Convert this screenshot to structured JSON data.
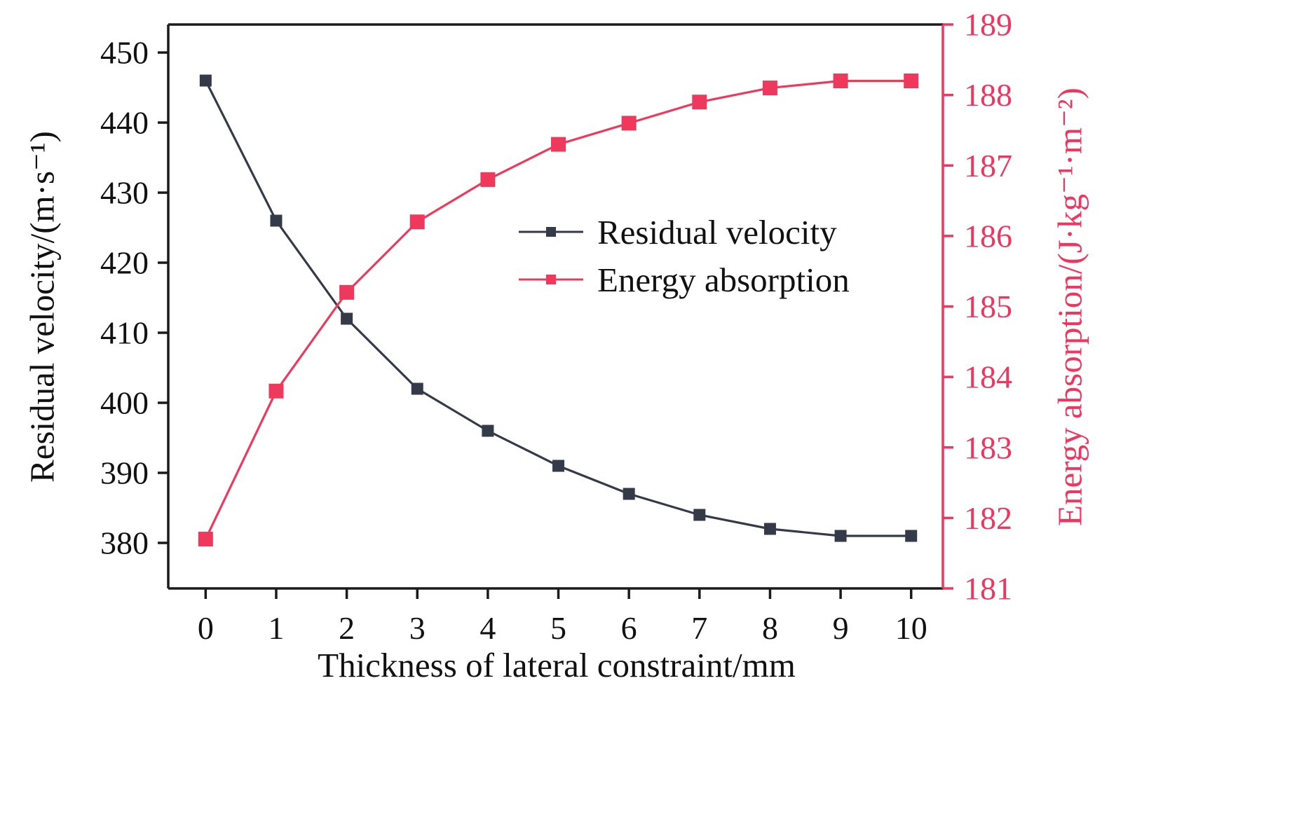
{
  "colors": {
    "background": "#ffffff",
    "frame": "#1a1a1a",
    "accent_red": "#f0355f",
    "dark_series": "#353a48",
    "text": "#111111"
  },
  "chart_data": {
    "type": "line",
    "title": "",
    "xlabel": "Thickness of lateral constraint/mm",
    "ylabel_left": "Residual velocity/(m·s⁻¹)",
    "ylabel_right": "Energy absorption/(J·kg⁻¹·m⁻²)",
    "x": [
      0,
      1,
      2,
      3,
      4,
      5,
      6,
      7,
      8,
      9,
      10
    ],
    "series": [
      {
        "name": "Residual velocity",
        "axis": "left",
        "color": "#353a48",
        "marker": "square",
        "values": [
          446,
          426,
          412,
          402,
          396,
          391,
          387,
          384,
          382,
          381,
          381
        ]
      },
      {
        "name": "Energy absorption",
        "axis": "right",
        "color": "#ee395c",
        "marker": "square",
        "values": [
          181.7,
          183.8,
          185.2,
          186.2,
          186.8,
          187.3,
          187.6,
          187.9,
          188.1,
          188.2,
          188.2
        ]
      }
    ],
    "xlim": [
      -0.53,
      10.45
    ],
    "ylim_left": [
      373.5,
      454
    ],
    "ylim_right": [
      181,
      189
    ],
    "xticks": [
      0,
      1,
      2,
      3,
      4,
      5,
      6,
      7,
      8,
      9,
      10
    ],
    "yticks_left": [
      380,
      390,
      400,
      410,
      420,
      430,
      440,
      450
    ],
    "yticks_right": [
      181,
      182,
      183,
      184,
      185,
      186,
      187,
      188,
      189
    ],
    "grid": false,
    "legend_position": "inside center-right",
    "legend": [
      "Residual velocity",
      "Energy absorption"
    ]
  }
}
